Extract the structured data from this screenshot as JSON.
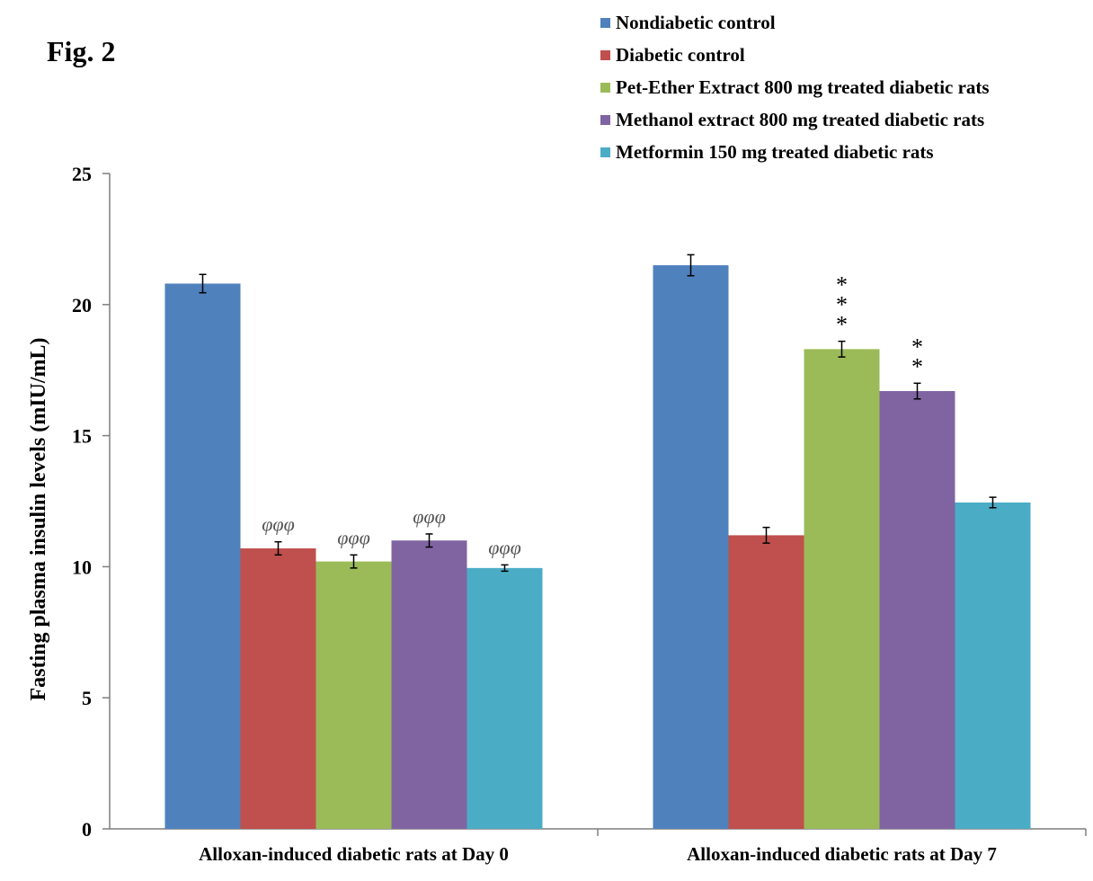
{
  "figure_label": "Fig. 2",
  "chart_data": {
    "type": "bar",
    "categories": [
      "Alloxan-induced diabetic rats at Day 0",
      "Alloxan-induced diabetic rats at Day 7"
    ],
    "ylabel": "Fasting plasma insulin levels (mIU/mL)",
    "xlabel": "",
    "ylim": [
      0,
      25
    ],
    "yticks": [
      0,
      5,
      10,
      15,
      20,
      25
    ],
    "grid": false,
    "legend_position": "top-right",
    "series": [
      {
        "name": "Nondiabetic control",
        "color": "#4F81BD",
        "values": [
          20.8,
          21.5
        ],
        "errors": [
          0.35,
          0.4
        ],
        "annotations": [
          "",
          ""
        ]
      },
      {
        "name": "Diabetic control",
        "color": "#C0504D",
        "values": [
          10.7,
          11.2
        ],
        "errors": [
          0.25,
          0.3
        ],
        "annotations": [
          "φφφ",
          ""
        ]
      },
      {
        "name": "Pet-Ether Extract 800 mg treated diabetic rats",
        "color": "#9BBB59",
        "values": [
          10.2,
          18.3
        ],
        "errors": [
          0.25,
          0.3
        ],
        "annotations": [
          "φφφ",
          "***"
        ]
      },
      {
        "name": "Methanol extract 800 mg treated diabetic rats",
        "color": "#8064A2",
        "values": [
          11.0,
          16.7
        ],
        "errors": [
          0.25,
          0.3
        ],
        "annotations": [
          "φφφ",
          "**"
        ]
      },
      {
        "name": "Metformin 150 mg treated diabetic rats",
        "color": "#4BACC6",
        "values": [
          9.95,
          12.45
        ],
        "errors": [
          0.12,
          0.2
        ],
        "annotations": [
          "φφφ",
          ""
        ]
      }
    ]
  }
}
